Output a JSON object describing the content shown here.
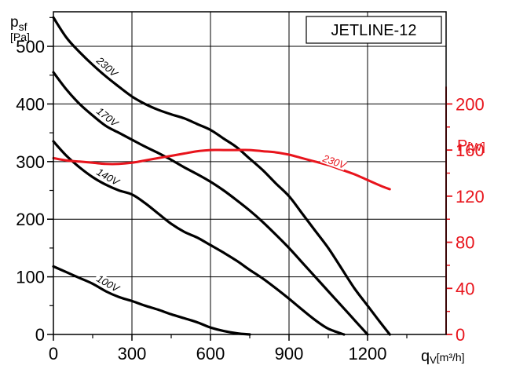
{
  "chart_data": {
    "type": "line",
    "model": "JETLINE-12",
    "xlabel": {
      "main": "q",
      "sub": "V",
      "unit": "[m³/h]"
    },
    "ylabel_left": {
      "main": "p",
      "sub": "sf",
      "unit": "[Pa]"
    },
    "ylabel_right": {
      "main": "P",
      "unit": "[W]"
    },
    "xlim": [
      0,
      1500
    ],
    "ylim_left": [
      0,
      560
    ],
    "ylim_right": [
      0,
      280
    ],
    "x_ticks": [
      "0",
      "300",
      "600",
      "900",
      "1200"
    ],
    "x_tick_values": [
      0,
      300,
      600,
      900,
      1200
    ],
    "y_left_ticks": [
      "0",
      "100",
      "200",
      "300",
      "400",
      "500"
    ],
    "y_left_tick_values": [
      0,
      100,
      200,
      300,
      400,
      500
    ],
    "y_right_ticks": [
      "0",
      "40",
      "80",
      "120",
      "160",
      "200"
    ],
    "y_right_tick_values": [
      0,
      40,
      80,
      120,
      160,
      200
    ],
    "grid": true,
    "colors": {
      "pressure": "#000000",
      "power": "#e8141c"
    },
    "pressure_series": [
      {
        "name": "230V",
        "x": [
          0,
          50,
          100,
          150,
          200,
          250,
          300,
          350,
          400,
          450,
          500,
          550,
          600,
          650,
          700,
          750,
          800,
          850,
          900,
          950,
          1000,
          1050,
          1100,
          1150,
          1200,
          1250,
          1285
        ],
        "y": [
          550,
          515,
          490,
          468,
          448,
          430,
          413,
          400,
          390,
          382,
          375,
          365,
          355,
          340,
          325,
          305,
          285,
          262,
          240,
          210,
          180,
          150,
          115,
          80,
          50,
          20,
          0
        ]
      },
      {
        "name": "170V",
        "x": [
          0,
          50,
          100,
          150,
          200,
          250,
          300,
          350,
          400,
          450,
          500,
          550,
          600,
          650,
          700,
          750,
          800,
          850,
          900,
          950,
          1000,
          1050,
          1100,
          1150,
          1200
        ],
        "y": [
          455,
          425,
          400,
          380,
          362,
          350,
          338,
          326,
          315,
          303,
          290,
          278,
          265,
          250,
          233,
          215,
          195,
          173,
          150,
          125,
          100,
          75,
          50,
          25,
          0
        ]
      },
      {
        "name": "140V",
        "x": [
          0,
          50,
          100,
          150,
          200,
          250,
          300,
          350,
          400,
          450,
          500,
          550,
          600,
          650,
          700,
          750,
          800,
          850,
          900,
          950,
          1000,
          1050,
          1110
        ],
        "y": [
          335,
          310,
          290,
          273,
          260,
          250,
          243,
          228,
          210,
          192,
          178,
          168,
          155,
          142,
          128,
          112,
          97,
          80,
          62,
          43,
          25,
          10,
          0
        ]
      },
      {
        "name": "100V",
        "x": [
          0,
          50,
          100,
          150,
          200,
          250,
          300,
          350,
          400,
          450,
          500,
          550,
          600,
          650,
          700,
          750
        ],
        "y": [
          118,
          108,
          98,
          88,
          75,
          65,
          58,
          50,
          43,
          35,
          28,
          21,
          12,
          6,
          2,
          0
        ]
      }
    ],
    "power_series": [
      {
        "name": "230V",
        "x": [
          0,
          50,
          100,
          150,
          200,
          250,
          300,
          350,
          400,
          450,
          500,
          550,
          600,
          650,
          700,
          750,
          800,
          850,
          900,
          950,
          1000,
          1050,
          1100,
          1150,
          1200,
          1250,
          1285
        ],
        "y": [
          153,
          151,
          150,
          149,
          148,
          148,
          149,
          151,
          153,
          155,
          157,
          159,
          160,
          160,
          160,
          160,
          159,
          158,
          156,
          153,
          150,
          147,
          143,
          139,
          134,
          129,
          126
        ]
      }
    ]
  }
}
